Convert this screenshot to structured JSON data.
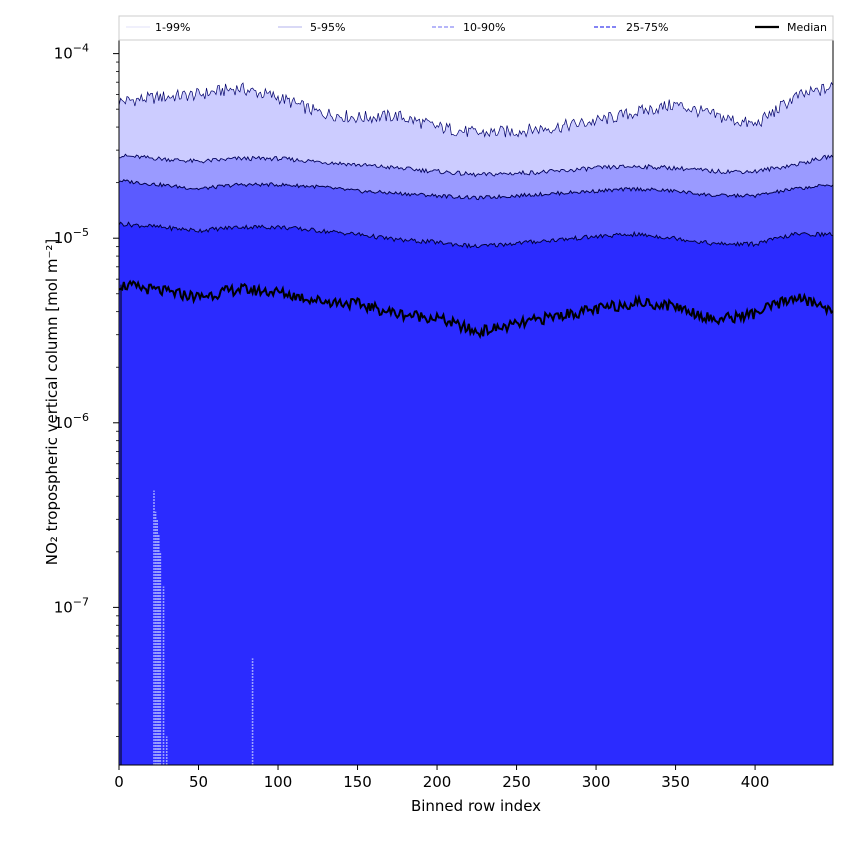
{
  "chart_data": {
    "type": "area",
    "xlabel": "Binned row index",
    "ylabel": "NO₂ tropospheric vertical column [mol m⁻²]",
    "yscale": "log",
    "xlim": [
      0,
      449
    ],
    "ylim": [
      1.4e-08,
      0.00012
    ],
    "x_ticks": [
      0,
      50,
      100,
      150,
      200,
      250,
      300,
      350,
      400
    ],
    "y_ticks": [
      {
        "value": 1e-07,
        "base": "10",
        "exp": "−7"
      },
      {
        "value": 1e-06,
        "base": "10",
        "exp": "−6"
      },
      {
        "value": 1e-05,
        "base": "10",
        "exp": "−5"
      },
      {
        "value": 0.0001,
        "base": "10",
        "exp": "−4"
      }
    ],
    "legend_position": "top",
    "legend": [
      {
        "label": "1-99%",
        "color": "#d8d8f8",
        "style": "solid",
        "width": 0.8
      },
      {
        "label": "5-95%",
        "color": "#9a9ae8",
        "style": "solid",
        "width": 0.8
      },
      {
        "label": "10-90%",
        "color": "#8a8af5",
        "style": "dashed",
        "width": 1.2
      },
      {
        "label": "25-75%",
        "color": "#5c5cf0",
        "style": "dashed",
        "width": 1.6
      },
      {
        "label": "Median",
        "color": "#000000",
        "style": "solid",
        "width": 2.2
      }
    ],
    "colors": {
      "band_1_99": "#2b2bff",
      "band_5_95": "#5b5bff",
      "band_10_90": "#9a9aff",
      "band_25_75": "#ccccff",
      "median": "#000000"
    },
    "x": [
      0,
      25,
      50,
      75,
      100,
      125,
      150,
      175,
      200,
      225,
      250,
      275,
      300,
      325,
      350,
      375,
      400,
      425,
      449
    ],
    "series": [
      {
        "name": "p95",
        "values": [
          5.5e-05,
          5.8e-05,
          6e-05,
          6.5e-05,
          5.8e-05,
          4.8e-05,
          4.5e-05,
          4.6e-05,
          4e-05,
          3.7e-05,
          3.8e-05,
          4e-05,
          4.3e-05,
          4.8e-05,
          5.3e-05,
          4.6e-05,
          4.1e-05,
          5.8e-05,
          6.6e-05
        ]
      },
      {
        "name": "p90",
        "values": [
          2.8e-05,
          2.7e-05,
          2.6e-05,
          2.7e-05,
          2.7e-05,
          2.6e-05,
          2.5e-05,
          2.4e-05,
          2.3e-05,
          2.2e-05,
          2.25e-05,
          2.3e-05,
          2.4e-05,
          2.45e-05,
          2.4e-05,
          2.3e-05,
          2.3e-05,
          2.5e-05,
          2.8e-05
        ]
      },
      {
        "name": "p75",
        "values": [
          2.05e-05,
          1.95e-05,
          1.85e-05,
          1.95e-05,
          1.95e-05,
          1.9e-05,
          1.8e-05,
          1.75e-05,
          1.7e-05,
          1.65e-05,
          1.7e-05,
          1.75e-05,
          1.8e-05,
          1.85e-05,
          1.8e-05,
          1.7e-05,
          1.7e-05,
          1.85e-05,
          1.95e-05
        ]
      },
      {
        "name": "p50",
        "values": [
          1.2e-05,
          1.15e-05,
          1.1e-05,
          1.15e-05,
          1.15e-05,
          1.1e-05,
          1.05e-05,
          9.8e-06,
          9.5e-06,
          9e-06,
          9.4e-06,
          9.8e-06,
          1.02e-05,
          1.05e-05,
          1e-05,
          9.3e-06,
          9.3e-06,
          1.05e-05,
          1.05e-05
        ]
      },
      {
        "name": "median",
        "values": [
          5.6e-06,
          5.2e-06,
          4.8e-06,
          5.3e-06,
          5.1e-06,
          4.6e-06,
          4.4e-06,
          3.9e-06,
          3.7e-06,
          3.1e-06,
          3.4e-06,
          3.8e-06,
          4.1e-06,
          4.5e-06,
          4.3e-06,
          3.6e-06,
          3.9e-06,
          4.8e-06,
          4.1e-06
        ]
      }
    ],
    "low_spikes": [
      {
        "x": 22,
        "top": 4.3e-07
      },
      {
        "x": 23,
        "top": 3.3e-07
      },
      {
        "x": 24,
        "top": 3e-07
      },
      {
        "x": 25,
        "top": 2.5e-07
      },
      {
        "x": 26,
        "top": 2e-07
      },
      {
        "x": 28,
        "top": 1.3e-07
      },
      {
        "x": 30,
        "top": 2e-08
      },
      {
        "x": 84,
        "top": 5.3e-08
      }
    ]
  }
}
